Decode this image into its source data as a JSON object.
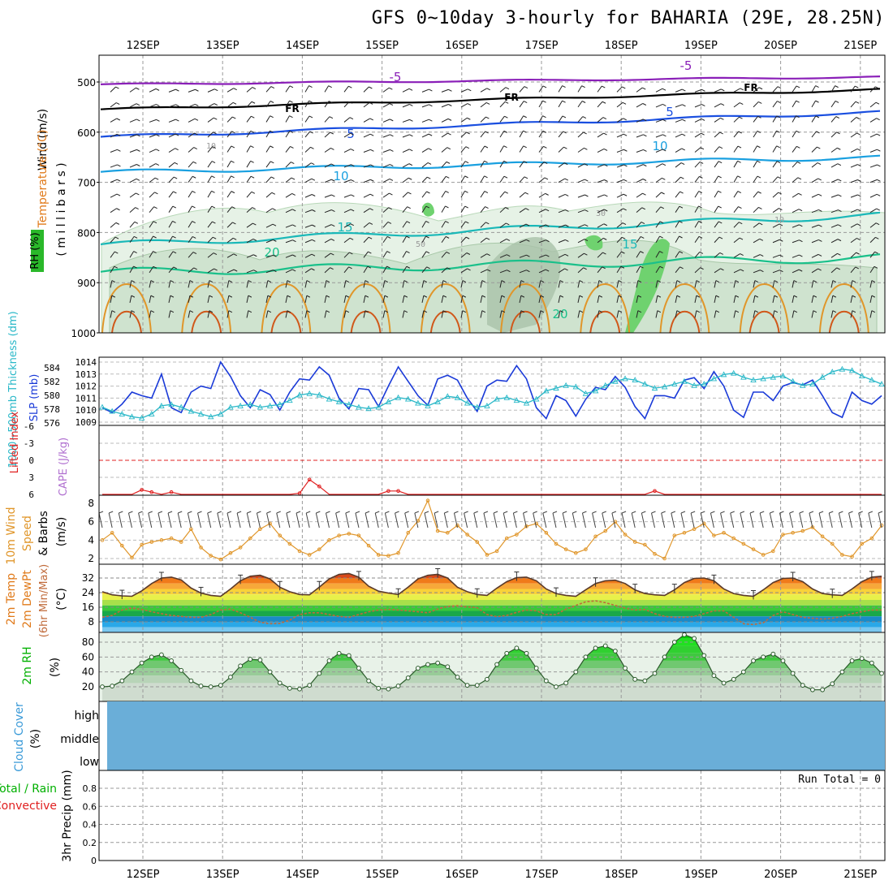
{
  "title": "GFS 0~10day 3-hourly for BAHARIA (29E, 28.25N)",
  "colors": {
    "frame": "#000000",
    "grid": "#999999",
    "purple": "#8a1fb8",
    "black": "#000000",
    "blue": "#1a4fe0",
    "lightblue": "#1aa0e0",
    "teal": "#1ab8b8",
    "green": "#1ac08a",
    "orange": "#e0962a",
    "darkorange": "#d0581a",
    "magenta": "#e0207a",
    "slp": "#1a3ad8",
    "thick": "#2ab8c8",
    "li": "#e02020",
    "wind10": "#e0962a",
    "rh": "#00b000",
    "cloud": "#6aaed8",
    "precip_total": "#00b000",
    "precip_conv": "#e02020",
    "t_label": "#e07a1a",
    "rh_box": "#2ab82a"
  },
  "dates": [
    "12SEP",
    "13SEP",
    "14SEP",
    "15SEP",
    "16SEP",
    "17SEP",
    "18SEP",
    "19SEP",
    "20SEP",
    "21SEP"
  ],
  "panel_labels": {
    "upper": {
      "wind": "Wind (m/s)",
      "temperature": "Temperature (°C)",
      "rh": "RH (%)",
      "mb": "( m i l l i b a r s )"
    },
    "slp": {
      "thickness": "1000~500mb Thickness (dm)",
      "slp": "SLP (mb)"
    },
    "li": {
      "li": "Lifted Index",
      "cape": "CAPE (J/kg)"
    },
    "wind10": {
      "a": "10m Wind",
      "b": "Speed",
      "c": "& Barbs",
      "unit": "(m/s)"
    },
    "temp2m": {
      "a": "2m Temp",
      "b": "2m DewPt",
      "c": "(6hr Min/Max)",
      "unit": "(°C)"
    },
    "rh2m": {
      "a": "2m RH",
      "unit": "(%)"
    },
    "cloud": {
      "a": "Cloud Cover",
      "unit": "(%)",
      "high": "high",
      "middle": "middle",
      "low": "low"
    },
    "precip": {
      "a": "Total / Rain",
      "b": "Convective",
      "c": "3hr Precip (mm)",
      "run_total": "Run Total = 0"
    }
  },
  "upper_ticks": [
    "500",
    "600",
    "700",
    "800",
    "900",
    "1000"
  ],
  "contour_labels": {
    "m5": "-5",
    "fr": "FR",
    "p5": "5",
    "p10": "10",
    "p15": "15",
    "p20": "20",
    "rh10": "10",
    "rh30": "30",
    "rh50": "50"
  },
  "slp_ticks_left": [
    "584",
    "582",
    "580",
    "578",
    "576"
  ],
  "slp_ticks_right": [
    "1014",
    "1013",
    "1012",
    "1011",
    "1010",
    "1009"
  ],
  "li_ticks": [
    "-6",
    "-3",
    "0",
    "3",
    "6"
  ],
  "wind_ticks": [
    "8",
    "6",
    "4",
    "2"
  ],
  "temp_ticks": [
    "32",
    "24",
    "16",
    "8"
  ],
  "rh_ticks": [
    "80",
    "60",
    "40",
    "20"
  ],
  "precip_ticks": [
    "0.8",
    "0.6",
    "0.4",
    "0.2",
    "0"
  ],
  "chart_data": [
    {
      "type": "line",
      "name": "SLP and 1000-500mb thickness",
      "x_unit": "3-hourly steps",
      "series": [
        {
          "name": "SLP (mb)",
          "values": [
            1010.2,
            1009.8,
            1010.5,
            1011.5,
            1011.2,
            1011.0,
            1013.0,
            1010.2,
            1009.8,
            1011.5,
            1012.0,
            1011.8,
            1014.0,
            1012.8,
            1011.2,
            1010.2,
            1011.7,
            1011.3,
            1010.0,
            1011.5,
            1012.6,
            1012.5,
            1013.6,
            1012.9,
            1011.0,
            1010.1,
            1011.8,
            1011.7,
            1010.3,
            1012.0,
            1013.6,
            1012.4,
            1011.2,
            1010.4,
            1012.6,
            1012.9,
            1012.5,
            1011.0,
            1009.9,
            1012.0,
            1012.5,
            1012.4,
            1013.7,
            1012.6,
            1010.2,
            1009.3,
            1011.2,
            1010.8,
            1009.5,
            1010.9,
            1011.9,
            1011.7,
            1012.8,
            1011.9,
            1010.3,
            1009.3,
            1011.2,
            1011.2,
            1011.0,
            1012.5,
            1012.7,
            1011.8,
            1013.2,
            1012.0,
            1010.0,
            1009.4,
            1011.5,
            1011.5,
            1010.8,
            1012.0,
            1012.3,
            1012.1,
            1012.5,
            1011.2,
            1009.8,
            1009.4,
            1011.5,
            1010.8,
            1010.5,
            1011.2
          ]
        },
        {
          "name": "Thickness (dm)",
          "values": [
            578.2,
            577.6,
            577.2,
            576.8,
            576.6,
            577.2,
            578.4,
            578.6,
            578.2,
            577.6,
            577.2,
            576.8,
            577.2,
            578.2,
            578.4,
            578.6,
            578.2,
            578.4,
            578.6,
            579.2,
            580.0,
            580.2,
            580.0,
            579.4,
            579.0,
            578.6,
            578.2,
            578.0,
            578.2,
            579.0,
            579.6,
            579.4,
            578.8,
            578.4,
            579.0,
            579.8,
            579.6,
            578.8,
            578.2,
            578.4,
            579.4,
            579.6,
            579.2,
            578.8,
            579.4,
            580.6,
            581.0,
            581.4,
            581.2,
            580.2,
            580.6,
            581.4,
            582.0,
            582.4,
            582.2,
            581.6,
            581.0,
            581.2,
            581.6,
            582.0,
            581.4,
            581.6,
            582.4,
            583.0,
            583.2,
            582.6,
            582.2,
            582.4,
            582.6,
            582.8,
            582.0,
            581.4,
            581.6,
            582.6,
            583.4,
            583.8,
            583.6,
            582.8,
            582.2,
            581.6
          ]
        }
      ]
    },
    {
      "type": "line",
      "name": "Lifted Index",
      "ylim": [
        -6,
        6
      ],
      "series": [
        {
          "name": "Lifted Index",
          "values": [
            6.0,
            6.0,
            6.0,
            6.0,
            5.2,
            5.6,
            6.0,
            5.6,
            6.0,
            6.0,
            6.0,
            6.0,
            6.0,
            6.0,
            6.0,
            6.0,
            6.0,
            6.0,
            6.0,
            6.0,
            5.8,
            3.4,
            4.6,
            6.0,
            6.0,
            6.0,
            6.0,
            6.0,
            6.0,
            5.4,
            5.4,
            6.0,
            6.0,
            6.0,
            6.0,
            6.0,
            6.0,
            6.0,
            6.0,
            6.0,
            6.0,
            6.0,
            6.0,
            6.0,
            6.0,
            6.0,
            6.0,
            6.0,
            6.0,
            6.0,
            6.0,
            6.0,
            6.0,
            6.0,
            6.0,
            6.0,
            5.4,
            6.0,
            6.0,
            6.0,
            6.0,
            6.0,
            6.0,
            6.0,
            6.0,
            6.0,
            6.0,
            6.0,
            6.0,
            6.0,
            6.0,
            6.0,
            6.0,
            6.0,
            6.0,
            6.0,
            6.0,
            6.0,
            6.0,
            6.0
          ]
        }
      ]
    },
    {
      "type": "line",
      "name": "10m Wind Speed",
      "ylim": [
        1.5,
        8.5
      ],
      "series": [
        {
          "name": "10m Wind Speed (m/s)",
          "values": [
            4.0,
            4.8,
            3.4,
            2.1,
            3.5,
            3.8,
            4.0,
            4.2,
            3.8,
            5.2,
            3.2,
            2.3,
            1.9,
            2.6,
            3.2,
            4.2,
            5.2,
            5.8,
            4.5,
            3.6,
            2.8,
            2.4,
            3.0,
            4.0,
            4.5,
            4.7,
            4.5,
            3.4,
            2.4,
            2.3,
            2.6,
            4.8,
            6.1,
            8.3,
            5.0,
            4.8,
            5.6,
            4.6,
            3.8,
            2.4,
            2.8,
            4.2,
            4.6,
            5.5,
            5.8,
            4.8,
            3.6,
            3.0,
            2.6,
            3.0,
            4.4,
            5.0,
            6.0,
            4.6,
            3.8,
            3.5,
            2.5,
            2.0,
            4.5,
            4.8,
            5.2,
            5.8,
            4.5,
            4.8,
            4.2,
            3.6,
            3.0,
            2.4,
            2.8,
            4.6,
            4.8,
            5.0,
            5.4,
            4.4,
            3.6,
            2.4,
            2.2,
            3.6,
            4.2,
            5.6
          ]
        }
      ]
    },
    {
      "type": "area",
      "name": "2m Temperature and Dew Point",
      "ylim": [
        2,
        38
      ],
      "series": [
        {
          "name": "2m Temp (°C)",
          "values": [
            24.5,
            22.8,
            22.2,
            22.0,
            25.0,
            29.0,
            32.0,
            32.5,
            31.0,
            26.5,
            23.8,
            22.5,
            22.0,
            26.0,
            30.5,
            33.0,
            33.5,
            31.5,
            27.0,
            24.5,
            23.0,
            22.8,
            27.0,
            31.5,
            34.0,
            34.5,
            32.5,
            27.5,
            24.8,
            23.8,
            23.0,
            27.0,
            31.5,
            33.5,
            34.0,
            32.0,
            27.0,
            24.5,
            23.0,
            22.5,
            26.5,
            30.0,
            32.2,
            32.5,
            30.5,
            26.0,
            23.5,
            22.5,
            22.0,
            25.5,
            29.0,
            30.5,
            30.8,
            29.0,
            25.5,
            23.5,
            22.8,
            22.5,
            25.5,
            29.5,
            31.8,
            32.0,
            30.5,
            26.0,
            23.5,
            22.5,
            22.0,
            25.5,
            29.5,
            31.8,
            32.0,
            30.0,
            26.0,
            23.5,
            22.8,
            22.5,
            26.0,
            30.0,
            32.5,
            33.0
          ]
        },
        {
          "name": "2m DewPt (°C)",
          "values": [
            10.5,
            11.5,
            14.5,
            15.5,
            14.8,
            13.5,
            12.5,
            11.5,
            11.0,
            10.5,
            10.5,
            12.0,
            14.5,
            15.0,
            13.0,
            10.5,
            7.8,
            7.0,
            7.2,
            9.0,
            12.0,
            13.0,
            13.0,
            12.0,
            11.0,
            10.5,
            12.0,
            13.5,
            14.5,
            14.8,
            14.5,
            14.0,
            13.5,
            13.0,
            15.0,
            16.5,
            16.8,
            16.2,
            15.8,
            12.0,
            10.8,
            11.5,
            13.2,
            14.5,
            14.0,
            12.0,
            12.0,
            15.0,
            17.0,
            19.0,
            19.5,
            18.5,
            17.0,
            15.5,
            14.5,
            14.8,
            12.5,
            11.0,
            10.5,
            10.5,
            11.0,
            12.5,
            14.0,
            14.0,
            10.5,
            7.0,
            6.5,
            7.5,
            11.5,
            13.5,
            12.0,
            10.5,
            10.0,
            9.5,
            10.0,
            11.0,
            12.5,
            13.5,
            14.5,
            14.5
          ]
        }
      ]
    },
    {
      "type": "area",
      "name": "2m RH",
      "ylim": [
        0,
        95
      ],
      "series": [
        {
          "name": "2m RH (%)",
          "values": [
            20,
            21,
            28,
            40,
            52,
            60,
            63,
            55,
            42,
            28,
            21,
            20,
            22,
            33,
            48,
            57,
            56,
            40,
            25,
            18,
            17,
            22,
            38,
            55,
            65,
            62,
            45,
            28,
            18,
            17,
            21,
            32,
            45,
            50,
            52,
            47,
            33,
            22,
            22,
            30,
            50,
            65,
            72,
            65,
            45,
            28,
            20,
            25,
            40,
            60,
            72,
            75,
            68,
            45,
            30,
            28,
            38,
            60,
            80,
            90,
            85,
            62,
            35,
            25,
            30,
            40,
            55,
            60,
            64,
            55,
            38,
            22,
            16,
            16,
            24,
            40,
            55,
            58,
            52,
            38
          ]
        }
      ]
    },
    {
      "type": "area",
      "name": "Cloud Cover",
      "series": [
        {
          "name": "Cloud Cover",
          "values": []
        }
      ]
    },
    {
      "type": "bar",
      "name": "3hr Precip",
      "ylim": [
        0,
        0.95
      ],
      "series": [
        {
          "name": "3hr Precip (mm)",
          "values": []
        }
      ]
    }
  ]
}
